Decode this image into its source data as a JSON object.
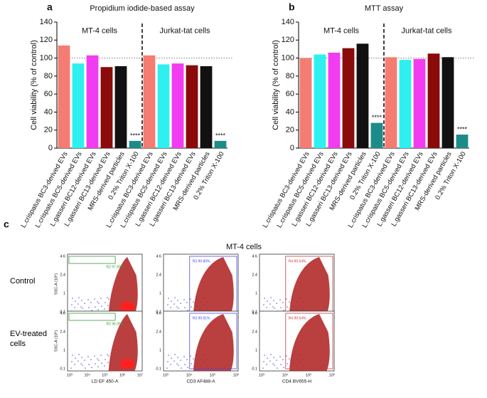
{
  "chart_data": [
    {
      "type": "bar",
      "panel": "a",
      "title": "Propidium iodide-based assay",
      "y_label": "Cell viability (% of control)",
      "categories": [
        "L.crispatus BC3-derived EVs",
        "L.crispatus BC5-derived EVs",
        "L.gasseri BC12-derived EVs",
        "L.gasseri BC13-derived EVs",
        "MRS-derived particles",
        "0.2% Triton X-100",
        "L.crispatus BC3-derived EVs",
        "L.crispatus BC5-derived EVs",
        "L.gasseri BC12-derived EVs",
        "L.gasseri BC13-derived EVs",
        "MRS-derived particles",
        "0.2% Triton X-100"
      ],
      "values": [
        114,
        94,
        103,
        90,
        91,
        8,
        103,
        93,
        94,
        92,
        91,
        8
      ],
      "colors": [
        "#f47c72",
        "#2ef0f0",
        "#f23cf2",
        "#8b0a0a",
        "#111111",
        "#1d8c88",
        "#f47c72",
        "#2ef0f0",
        "#f23cf2",
        "#8b0a0a",
        "#111111",
        "#1d8c88"
      ],
      "group_labels": [
        "MT-4 cells",
        "Jurkat-tat cells"
      ],
      "significance": "****",
      "reference_line": 100,
      "ylim": [
        0,
        140
      ],
      "yticks": [
        0,
        20,
        40,
        60,
        80,
        100,
        120,
        140
      ]
    },
    {
      "type": "bar",
      "panel": "b",
      "title": "MTT assay",
      "y_label": "Cell viability (% of control)",
      "categories": [
        "L.crispatus BC3-derived EVs",
        "L.crispatus BC5-derived EVs",
        "L.gasseri BC12-derived EVs",
        "L.gasseri BC13-derived EVs",
        "MRS-derived particles",
        "0.2% Triton X-100",
        "L.crispatus BC3-derived EVs",
        "L.crispatus BC5-derived EVs",
        "L.gasseri BC12-derived EVs",
        "L.gasseri BC13-derived EVs",
        "MRS-derived particles",
        "0.2% Triton X-100"
      ],
      "values": [
        100,
        104,
        106,
        111,
        116,
        28,
        101,
        98,
        99,
        105,
        101,
        15
      ],
      "colors": [
        "#f47c72",
        "#2ef0f0",
        "#f23cf2",
        "#8b0a0a",
        "#111111",
        "#1d8c88",
        "#f47c72",
        "#2ef0f0",
        "#f23cf2",
        "#8b0a0a",
        "#111111",
        "#1d8c88"
      ],
      "group_labels": [
        "MT-4 cells",
        "Jurkat-tat cells"
      ],
      "significance": "****",
      "reference_line": 100,
      "ylim": [
        0,
        140
      ],
      "yticks": [
        0,
        20,
        40,
        60,
        80,
        100,
        120,
        140
      ]
    }
  ],
  "flow_panel": {
    "panel": "c",
    "title": "MT-4 cells",
    "row_labels": [
      "Control",
      "EV-treated cells"
    ],
    "y_axis_label": "SSC-A (10⁶)",
    "y_ticks": [
      "4.6",
      "2.4",
      "1",
      "0.1"
    ],
    "x_axis_labels": [
      "LD EF 450-A",
      "CD3 AF488-A",
      "CD4 BV655-H"
    ],
    "x_ticks": [
      [
        "10³",
        "10⁴",
        "10⁵",
        "10⁶",
        "10⁷"
      ],
      [
        "10³",
        "10⁴",
        "10⁵",
        "10⁶"
      ],
      [
        "10³",
        "10⁴",
        "10⁵",
        "10⁶"
      ]
    ],
    "gates": [
      [
        "R2 97.69%",
        "R3 99.80%",
        "R4 99.54%"
      ],
      [
        "R2 96.05%",
        "R3 99.81%",
        "R4 99.54%"
      ]
    ]
  }
}
